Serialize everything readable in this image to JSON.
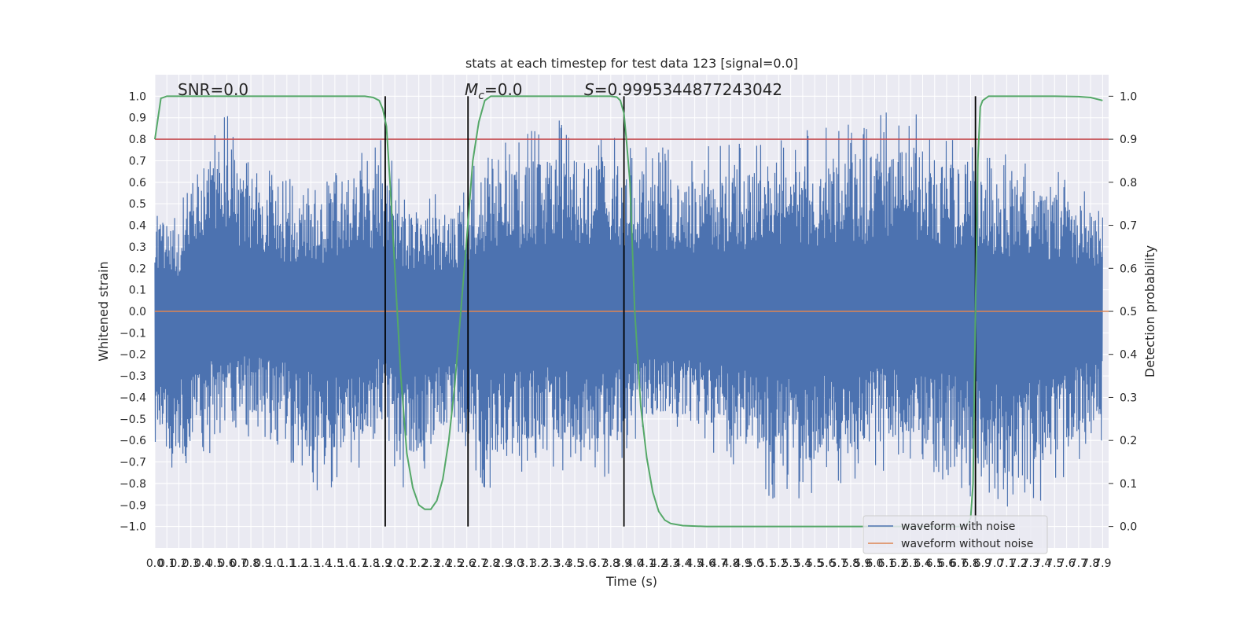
{
  "chart_data": {
    "type": "line",
    "title": "stats at each timestep for test data 123 [signal=0.0]",
    "xlabel": "Time (s)",
    "ylabel_left": "Whitened strain",
    "ylabel_right": "Detection probability",
    "xlim": [
      0.0,
      7.95
    ],
    "ylim_left": [
      -1.1,
      1.1
    ],
    "ylim_right": [
      -0.05,
      1.05
    ],
    "grid": true,
    "x_ticks": [
      "0.0",
      "0.1",
      "0.2",
      "0.3",
      "0.4",
      "0.5",
      "0.6",
      "0.7",
      "0.8",
      "0.9",
      "1.0",
      "1.1",
      "1.2",
      "1.3",
      "1.4",
      "1.5",
      "1.6",
      "1.7",
      "1.8",
      "1.9",
      "2.0",
      "2.1",
      "2.2",
      "2.3",
      "2.4",
      "2.5",
      "2.6",
      "2.7",
      "2.8",
      "2.9",
      "3.0",
      "3.1",
      "3.2",
      "3.3",
      "3.4",
      "3.5",
      "3.6",
      "3.7",
      "3.8",
      "3.9",
      "4.0",
      "4.1",
      "4.2",
      "4.3",
      "4.4",
      "4.5",
      "4.6",
      "4.7",
      "4.8",
      "4.9",
      "5.0",
      "5.1",
      "5.2",
      "5.3",
      "5.4",
      "5.5",
      "5.6",
      "5.7",
      "5.8",
      "5.9",
      "6.0",
      "6.1",
      "6.2",
      "6.3",
      "6.4",
      "6.5",
      "6.6",
      "6.7",
      "6.8",
      "6.9",
      "7.0",
      "7.1",
      "7.2",
      "7.3",
      "7.4",
      "7.5",
      "7.6",
      "7.7",
      "7.8",
      "7.9"
    ],
    "y_ticks_left": [
      "1.0",
      "0.9",
      "0.8",
      "0.7",
      "0.6",
      "0.5",
      "0.4",
      "0.3",
      "0.2",
      "0.1",
      "0.0",
      "−0.1",
      "−0.2",
      "−0.3",
      "−0.4",
      "−0.5",
      "−0.6",
      "−0.7",
      "−0.8",
      "−0.9",
      "−1.0"
    ],
    "y_ticks_right": [
      "1.0",
      "0.9",
      "0.8",
      "0.7",
      "0.6",
      "0.5",
      "0.4",
      "0.3",
      "0.2",
      "0.1",
      "0.0"
    ],
    "annotations": {
      "snr": "SNR=0.0",
      "mc_symbol": "M",
      "mc_sub": "c",
      "mc_value": "=0.0",
      "s_symbol": "S",
      "s_value": "=0.9995344877243042"
    },
    "threshold": 0.9,
    "vlines": [
      1.92,
      2.61,
      3.91,
      6.84
    ],
    "series": [
      {
        "name": "waveform with noise",
        "color": "#4c72b0",
        "axis": "left",
        "amplitude_envelope": [
          [
            0.0,
            0.57,
            -0.72
          ],
          [
            0.2,
            0.45,
            -0.85
          ],
          [
            0.3,
            0.78,
            -0.78
          ],
          [
            0.6,
            0.93,
            -0.55
          ],
          [
            1.0,
            0.62,
            -0.62
          ],
          [
            1.4,
            0.63,
            -0.87
          ],
          [
            1.7,
            0.79,
            -0.75
          ],
          [
            1.9,
            0.82,
            -0.6
          ],
          [
            2.1,
            0.55,
            -0.86
          ],
          [
            2.5,
            0.55,
            -0.62
          ],
          [
            2.7,
            0.72,
            -0.84
          ],
          [
            3.3,
            0.9,
            -0.73
          ],
          [
            3.8,
            0.87,
            -0.78
          ],
          [
            4.2,
            0.77,
            -0.6
          ],
          [
            4.7,
            0.77,
            -0.67
          ],
          [
            5.2,
            0.83,
            -0.9
          ],
          [
            5.8,
            0.87,
            -0.8
          ],
          [
            6.3,
            0.97,
            -0.7
          ],
          [
            6.8,
            0.77,
            -0.9
          ],
          [
            7.2,
            0.72,
            -0.98
          ],
          [
            7.9,
            0.58,
            -0.6
          ]
        ]
      },
      {
        "name": "waveform without noise",
        "color": "#dd8452",
        "axis": "left",
        "constant": 0.0
      },
      {
        "name": "detection probability",
        "color": "#55a868",
        "axis": "right",
        "x": [
          0.0,
          0.05,
          0.1,
          0.2,
          0.4,
          0.8,
          1.2,
          1.6,
          1.75,
          1.82,
          1.87,
          1.9,
          1.93,
          1.96,
          2.0,
          2.05,
          2.1,
          2.15,
          2.2,
          2.25,
          2.3,
          2.35,
          2.4,
          2.45,
          2.5,
          2.55,
          2.6,
          2.65,
          2.7,
          2.75,
          2.8,
          2.85,
          3.0,
          3.4,
          3.7,
          3.8,
          3.85,
          3.88,
          3.91,
          3.93,
          3.96,
          4.0,
          4.05,
          4.1,
          4.15,
          4.2,
          4.25,
          4.3,
          4.4,
          4.6,
          5.0,
          5.5,
          6.0,
          6.5,
          6.7,
          6.77,
          6.8,
          6.82,
          6.84,
          6.86,
          6.88,
          6.9,
          6.95,
          7.0,
          7.2,
          7.5,
          7.7,
          7.8,
          7.9
        ],
        "y": [
          0.9,
          0.995,
          1.0,
          1.0,
          1.0,
          1.0,
          1.0,
          1.0,
          1.0,
          0.997,
          0.99,
          0.97,
          0.93,
          0.8,
          0.6,
          0.35,
          0.17,
          0.09,
          0.05,
          0.04,
          0.04,
          0.06,
          0.11,
          0.2,
          0.33,
          0.5,
          0.67,
          0.85,
          0.94,
          0.99,
          1.0,
          1.0,
          1.0,
          1.0,
          1.0,
          1.0,
          0.998,
          0.99,
          0.96,
          0.9,
          0.8,
          0.5,
          0.28,
          0.16,
          0.08,
          0.035,
          0.015,
          0.007,
          0.002,
          0.0,
          0.0,
          0.0,
          0.0,
          0.0,
          0.0,
          0.003,
          0.02,
          0.1,
          0.5,
          0.85,
          0.975,
          0.99,
          1.0,
          1.0,
          1.0,
          1.0,
          0.999,
          0.997,
          0.99
        ]
      }
    ],
    "legend": {
      "placement": "bottom-right",
      "entries": [
        {
          "label": "waveform with noise",
          "color": "#4c72b0"
        },
        {
          "label": "waveform without noise",
          "color": "#dd8452"
        }
      ]
    },
    "colors": {
      "axes_bg": "#eaeaf2",
      "grid": "#ffffff",
      "threshold": "#c44e52",
      "vline": "#000000"
    }
  }
}
